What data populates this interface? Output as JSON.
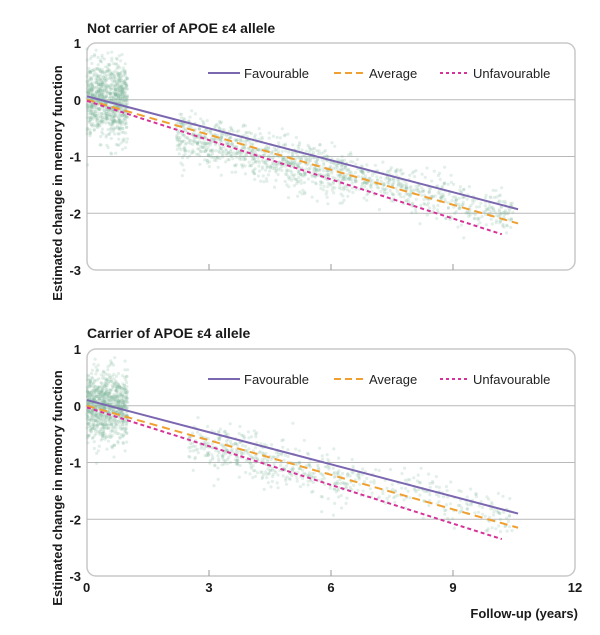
{
  "chart_data": [
    {
      "type": "scatter",
      "title": "Not carrier of APOE ε4 allele",
      "ylabel": "Estimated change in memory function",
      "xlabel": "",
      "xlim": [
        0,
        12
      ],
      "ylim": [
        -3,
        1
      ],
      "xticks": [],
      "yticks": [
        "1",
        "0",
        "-1",
        "-2",
        "-3"
      ],
      "grid": "horizontal",
      "legend_position": "top-right",
      "scatter_color": "#7fb79a",
      "scatter_clusters": [
        {
          "x_range": [
            0,
            1
          ],
          "y_center": 0.0,
          "y_spread": 0.55,
          "density": "high"
        },
        {
          "x_range": [
            2.2,
            6.5
          ],
          "y_center": -1.0,
          "y_spread": 0.35,
          "density": "high"
        },
        {
          "x_range": [
            6.5,
            10.5
          ],
          "y_center": -1.7,
          "y_spread": 0.3,
          "density": "medium"
        }
      ],
      "series": [
        {
          "name": "Favourable",
          "color": "#7b66b0",
          "style": "solid",
          "x": [
            0,
            10.6
          ],
          "y": [
            0.06,
            -1.93
          ]
        },
        {
          "name": "Average",
          "color": "#f0a030",
          "style": "dashed",
          "x": [
            0,
            10.6
          ],
          "y": [
            0.0,
            -2.18
          ]
        },
        {
          "name": "Unfavourable",
          "color": "#d63399",
          "style": "dotted",
          "x": [
            0,
            10.2
          ],
          "y": [
            -0.02,
            -2.37
          ]
        }
      ]
    },
    {
      "type": "scatter",
      "title": "Carrier of APOE ε4 allele",
      "ylabel": "Estimated change in memory function",
      "xlabel": "Follow-up (years)",
      "xlim": [
        0,
        12
      ],
      "ylim": [
        -3,
        1
      ],
      "xticks": [
        "0",
        "3",
        "6",
        "9",
        "12"
      ],
      "yticks": [
        "1",
        "0",
        "-1",
        "-2",
        "-3"
      ],
      "grid": "horizontal",
      "legend_position": "top-right",
      "scatter_color": "#7fb79a",
      "scatter_clusters": [
        {
          "x_range": [
            0,
            1
          ],
          "y_center": 0.0,
          "y_spread": 0.5,
          "density": "high"
        },
        {
          "x_range": [
            2.5,
            6.5
          ],
          "y_center": -1.0,
          "y_spread": 0.35,
          "density": "medium"
        },
        {
          "x_range": [
            6.5,
            10.5
          ],
          "y_center": -1.6,
          "y_spread": 0.3,
          "density": "low"
        }
      ],
      "series": [
        {
          "name": "Favourable",
          "color": "#7b66b0",
          "style": "solid",
          "x": [
            0,
            10.6
          ],
          "y": [
            0.1,
            -1.9
          ]
        },
        {
          "name": "Average",
          "color": "#f0a030",
          "style": "dashed",
          "x": [
            0,
            10.6
          ],
          "y": [
            0.0,
            -2.15
          ]
        },
        {
          "name": "Unfavourable",
          "color": "#d63399",
          "style": "dotted",
          "x": [
            0,
            10.2
          ],
          "y": [
            -0.03,
            -2.35
          ]
        }
      ]
    }
  ]
}
